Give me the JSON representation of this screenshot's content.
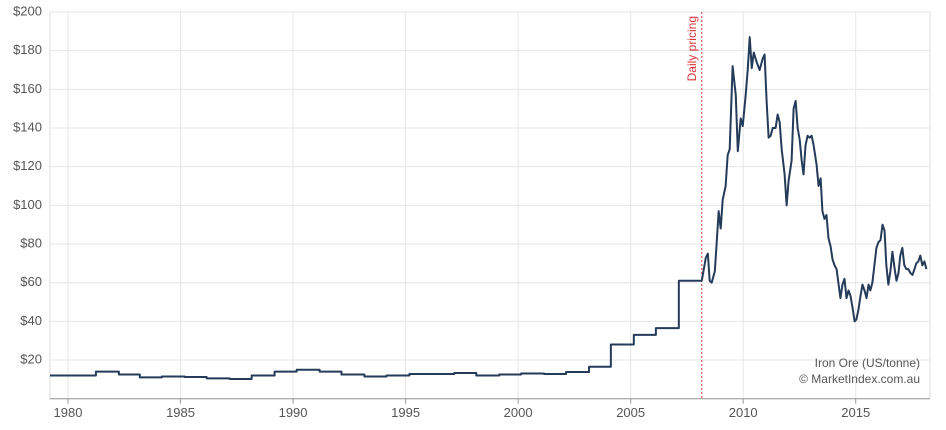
{
  "chart_data": {
    "type": "line",
    "x": [
      1979.2,
      1981.24,
      1981.24,
      1982.26,
      1982.26,
      1983.19,
      1983.19,
      1984.17,
      1984.17,
      1985.19,
      1985.19,
      1986.16,
      1986.16,
      1987.18,
      1987.18,
      1988.16,
      1988.16,
      1989.18,
      1989.18,
      1990.16,
      1990.16,
      1991.18,
      1991.18,
      1992.15,
      1992.15,
      1993.17,
      1993.17,
      1994.15,
      1994.15,
      1995.17,
      1995.17,
      1997.16,
      1997.16,
      1998.14,
      1998.14,
      1999.16,
      1999.16,
      2000.13,
      2000.13,
      2001.15,
      2001.15,
      2002.13,
      2002.13,
      2003.15,
      2003.15,
      2004.12,
      2004.12,
      2005.14,
      2005.14,
      2006.12,
      2006.12,
      2007.14,
      2007.14,
      2008.16,
      2008.34,
      2008.43,
      2008.51,
      2008.6,
      2008.74,
      2008.83,
      2008.91,
      2009.0,
      2009.09,
      2009.22,
      2009.31,
      2009.4,
      2009.53,
      2009.67,
      2009.76,
      2009.89,
      2009.98,
      2010.11,
      2010.2,
      2010.29,
      2010.38,
      2010.47,
      2010.6,
      2010.73,
      2010.87,
      2010.95,
      2011.04,
      2011.13,
      2011.22,
      2011.31,
      2011.44,
      2011.53,
      2011.62,
      2011.71,
      2011.84,
      2011.93,
      2012.02,
      2012.15,
      2012.24,
      2012.33,
      2012.42,
      2012.51,
      2012.6,
      2012.68,
      2012.77,
      2012.86,
      2012.95,
      2013.04,
      2013.13,
      2013.26,
      2013.35,
      2013.44,
      2013.52,
      2013.61,
      2013.7,
      2013.79,
      2013.88,
      2013.97,
      2014.06,
      2014.15,
      2014.24,
      2014.32,
      2014.41,
      2014.5,
      2014.59,
      2014.68,
      2014.77,
      2014.86,
      2014.95,
      2015.03,
      2015.12,
      2015.21,
      2015.3,
      2015.39,
      2015.48,
      2015.57,
      2015.65,
      2015.74,
      2015.83,
      2015.92,
      2016.01,
      2016.1,
      2016.19,
      2016.28,
      2016.36,
      2016.45,
      2016.54,
      2016.63,
      2016.72,
      2016.81,
      2016.9,
      2016.98,
      2017.07,
      2017.16,
      2017.25,
      2017.34,
      2017.43,
      2017.52,
      2017.61,
      2017.69,
      2017.78,
      2017.87,
      2017.96,
      2018.05,
      2018.14
    ],
    "series": [
      {
        "color": "#243b5a",
        "values": [
          12,
          12,
          14,
          14,
          12.5,
          12.5,
          11,
          11,
          11.5,
          11.5,
          11.2,
          11.2,
          10.5,
          10.5,
          10.2,
          10.2,
          12,
          12,
          14,
          14,
          15,
          15,
          14,
          14,
          12.5,
          12.5,
          11.5,
          11.5,
          12,
          12,
          12.8,
          12.8,
          13.3,
          13.3,
          12,
          12,
          12.5,
          12.5,
          13,
          13,
          12.8,
          12.8,
          13.8,
          13.8,
          16.5,
          16.5,
          28,
          28,
          33,
          33,
          36.5,
          36.5,
          61,
          61,
          73,
          75,
          61,
          60,
          66,
          82,
          97,
          88,
          103,
          110,
          126,
          129,
          172,
          157,
          128,
          145,
          141,
          157,
          170,
          187,
          171,
          179,
          174,
          170,
          176,
          178,
          154,
          135,
          136,
          140,
          140,
          147,
          143,
          129,
          116,
          100,
          113,
          123,
          150,
          154,
          140,
          134,
          123,
          116,
          131,
          136,
          135,
          136,
          131,
          121,
          110,
          114,
          97,
          93,
          95,
          83,
          79,
          72,
          69,
          67,
          59,
          52,
          59,
          62,
          52,
          56,
          53,
          47,
          40,
          41,
          46,
          53,
          59,
          56,
          52,
          59,
          56,
          60,
          69,
          78,
          81,
          82,
          90,
          87,
          69,
          59,
          66,
          76,
          68,
          61,
          65,
          74,
          78,
          69,
          67,
          67,
          65,
          64,
          67,
          70,
          71,
          74,
          69,
          71,
          67
        ]
      }
    ],
    "xlim": [
      1979.2,
      2018.3
    ],
    "xticks": [
      1980,
      1985,
      1990,
      1995,
      2000,
      2005,
      2010,
      2015
    ],
    "ylim": [
      0,
      200
    ],
    "yticks": [
      {
        "value": 20,
        "label": "$20"
      },
      {
        "value": 40,
        "label": "$40"
      },
      {
        "value": 60,
        "label": "$60"
      },
      {
        "value": 80,
        "label": "$80"
      },
      {
        "value": 100,
        "label": "$100"
      },
      {
        "value": 120,
        "label": "$120"
      },
      {
        "value": 140,
        "label": "$140"
      },
      {
        "value": 160,
        "label": "$160"
      },
      {
        "value": 180,
        "label": "$180"
      },
      {
        "value": 200,
        "label": "$200"
      }
    ],
    "grid": true,
    "annotation": {
      "text": "Daily pricing",
      "x": 2008.16,
      "color": "#d9343a"
    },
    "source": [
      "Iron Ore (US/tonne)",
      "© MarketIndex.com.au"
    ]
  }
}
